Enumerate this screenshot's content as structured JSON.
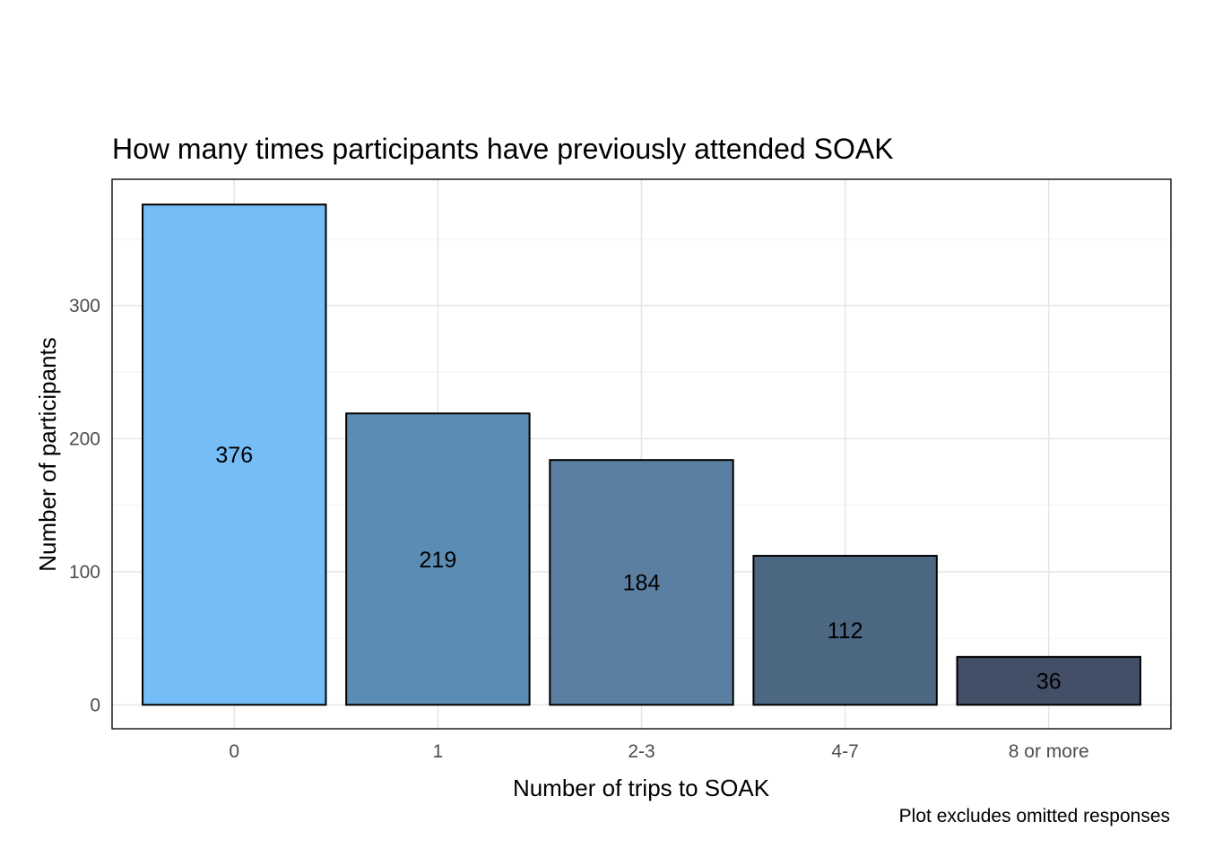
{
  "chart_data": {
    "type": "bar",
    "title": "How many times participants have previously attended SOAK",
    "xlabel": "Number of trips to SOAK",
    "ylabel": "Number of participants",
    "caption": "Plot excludes omitted responses",
    "categories": [
      "0",
      "1",
      "2-3",
      "4-7",
      "8 or more"
    ],
    "values": [
      376,
      219,
      184,
      112,
      36
    ],
    "data_labels": [
      "376",
      "219",
      "184",
      "112",
      "36"
    ],
    "bar_colors": [
      "#74BDF7",
      "#5B8DB4",
      "#5B7FA1",
      "#4C6782",
      "#434F66"
    ],
    "ylim": [
      -18,
      395
    ],
    "yticks": [
      0,
      100,
      200,
      300
    ],
    "ytick_labels": [
      "0",
      "100",
      "200",
      "300"
    ],
    "grid": true,
    "legend": "none"
  }
}
